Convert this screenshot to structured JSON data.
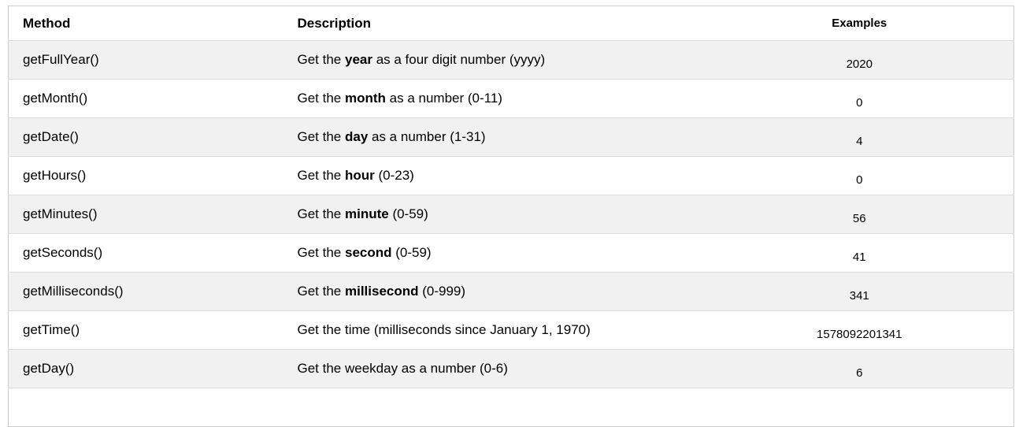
{
  "table": {
    "columns": [
      {
        "label": "Method"
      },
      {
        "label": "Description"
      },
      {
        "label": "Examples"
      }
    ],
    "rows": [
      {
        "method": "getFullYear()",
        "description": [
          {
            "text": "Get the ",
            "bold": false
          },
          {
            "text": "year",
            "bold": true
          },
          {
            "text": " as a four digit number (yyyy)",
            "bold": false
          }
        ],
        "example": "2020"
      },
      {
        "method": "getMonth()",
        "description": [
          {
            "text": "Get the ",
            "bold": false
          },
          {
            "text": "month",
            "bold": true
          },
          {
            "text": " as a number (0-11)",
            "bold": false
          }
        ],
        "example": "0"
      },
      {
        "method": "getDate()",
        "description": [
          {
            "text": "Get the ",
            "bold": false
          },
          {
            "text": "day",
            "bold": true
          },
          {
            "text": " as a number (1-31)",
            "bold": false
          }
        ],
        "example": "4"
      },
      {
        "method": "getHours()",
        "description": [
          {
            "text": "Get the ",
            "bold": false
          },
          {
            "text": "hour",
            "bold": true
          },
          {
            "text": " (0-23)",
            "bold": false
          }
        ],
        "example": "0"
      },
      {
        "method": "getMinutes()",
        "description": [
          {
            "text": "Get the ",
            "bold": false
          },
          {
            "text": "minute",
            "bold": true
          },
          {
            "text": " (0-59)",
            "bold": false
          }
        ],
        "example": "56"
      },
      {
        "method": "getSeconds()",
        "description": [
          {
            "text": "Get the ",
            "bold": false
          },
          {
            "text": "second",
            "bold": true
          },
          {
            "text": " (0-59)",
            "bold": false
          }
        ],
        "example": "41"
      },
      {
        "method": "getMilliseconds()",
        "description": [
          {
            "text": "Get the ",
            "bold": false
          },
          {
            "text": "millisecond",
            "bold": true
          },
          {
            "text": " (0-999)",
            "bold": false
          }
        ],
        "example": "341"
      },
      {
        "method": "getTime()",
        "description": [
          {
            "text": "Get the time (milliseconds since January 1, 1970)",
            "bold": false
          }
        ],
        "example": "1578092201341"
      },
      {
        "method": "getDay()",
        "description": [
          {
            "text": "Get the weekday as a number (0-6)",
            "bold": false
          }
        ],
        "example": "6"
      }
    ]
  },
  "colors": {
    "alt_row_bg": "#f1f1f1",
    "outer_border": "#cccccc",
    "row_border": "#dddddd",
    "text": "#000000"
  }
}
